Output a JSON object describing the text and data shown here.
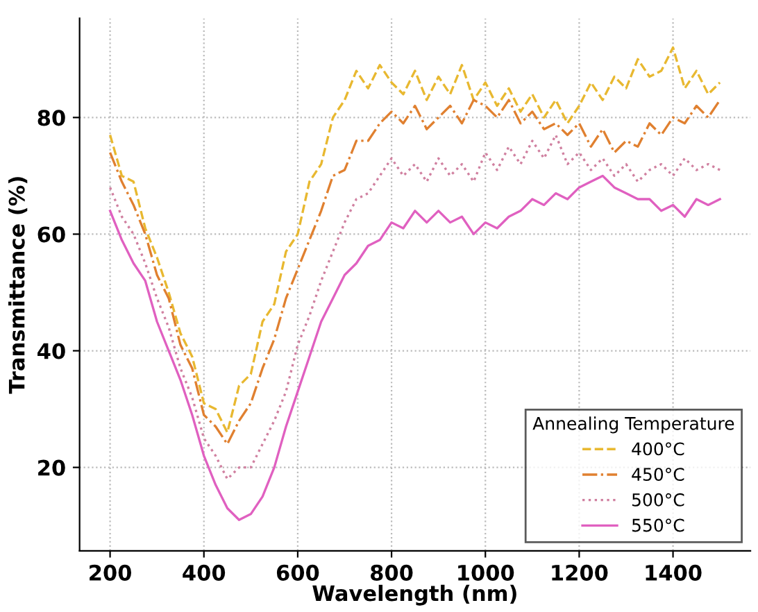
{
  "chart_data": {
    "type": "line",
    "xlabel": "Wavelength (nm)",
    "ylabel": "Transmittance (%)",
    "legend_title": "Annealing Temperature",
    "legend": "bottom right",
    "grid": true,
    "xlim": [
      135,
      1565
    ],
    "ylim": [
      5.7,
      97
    ],
    "xticks": [
      200,
      400,
      600,
      800,
      1000,
      1200,
      1400
    ],
    "yticks": [
      20,
      40,
      60,
      80
    ],
    "x": [
      200,
      225,
      250,
      275,
      300,
      325,
      350,
      375,
      400,
      425,
      450,
      475,
      500,
      525,
      550,
      575,
      600,
      625,
      650,
      675,
      700,
      725,
      750,
      775,
      800,
      825,
      850,
      875,
      900,
      925,
      950,
      975,
      1000,
      1025,
      1050,
      1075,
      1100,
      1125,
      1150,
      1175,
      1200,
      1225,
      1250,
      1275,
      1300,
      1325,
      1350,
      1375,
      1400,
      1425,
      1450,
      1475,
      1500
    ],
    "series": [
      {
        "name": "400°C",
        "color": "#e8b830",
        "line_style": "dashed",
        "values": [
          77,
          70,
          69,
          61,
          56,
          50,
          43,
          39,
          31,
          30,
          26,
          34,
          36,
          45,
          48,
          57,
          60,
          69,
          72,
          80,
          83,
          88,
          85,
          89,
          86,
          84,
          88,
          83,
          87,
          84,
          89,
          83,
          86,
          82,
          85,
          81,
          84,
          80,
          83,
          79,
          82,
          86,
          83,
          87,
          85,
          90,
          87,
          88,
          92,
          85,
          88,
          84,
          86
        ]
      },
      {
        "name": "450°C",
        "color": "#e08030",
        "line_style": "dashdot",
        "values": [
          74,
          69,
          65,
          60,
          53,
          49,
          41,
          37,
          29,
          27,
          24,
          28,
          31,
          37,
          42,
          49,
          54,
          59,
          64,
          70,
          71,
          76,
          76,
          79,
          81,
          79,
          82,
          78,
          80,
          82,
          79,
          83,
          82,
          80,
          83,
          79,
          81,
          78,
          79,
          77,
          79,
          75,
          78,
          74,
          76,
          75,
          79,
          77,
          80,
          79,
          82,
          80,
          83
        ]
      },
      {
        "name": "500°C",
        "color": "#d080a0",
        "line_style": "dotted",
        "values": [
          68,
          63,
          60,
          55,
          49,
          44,
          37,
          32,
          25,
          22,
          18,
          20,
          20,
          24,
          28,
          33,
          41,
          46,
          52,
          57,
          62,
          66,
          67,
          70,
          73,
          70,
          72,
          69,
          73,
          70,
          72,
          69,
          74,
          71,
          75,
          72,
          76,
          73,
          77,
          72,
          74,
          71,
          73,
          70,
          72,
          69,
          71,
          72,
          70,
          73,
          71,
          72,
          71
        ]
      },
      {
        "name": "550°C",
        "color": "#e060c0",
        "line_style": "solid",
        "values": [
          64,
          59,
          55,
          52,
          45,
          40,
          35,
          29,
          22,
          17,
          13,
          11,
          12,
          15,
          20,
          27,
          33,
          39,
          45,
          49,
          53,
          55,
          58,
          59,
          62,
          61,
          64,
          62,
          64,
          62,
          63,
          60,
          62,
          61,
          63,
          64,
          66,
          65,
          67,
          66,
          68,
          69,
          70,
          68,
          67,
          66,
          66,
          64,
          65,
          63,
          66,
          65,
          66
        ]
      }
    ]
  }
}
